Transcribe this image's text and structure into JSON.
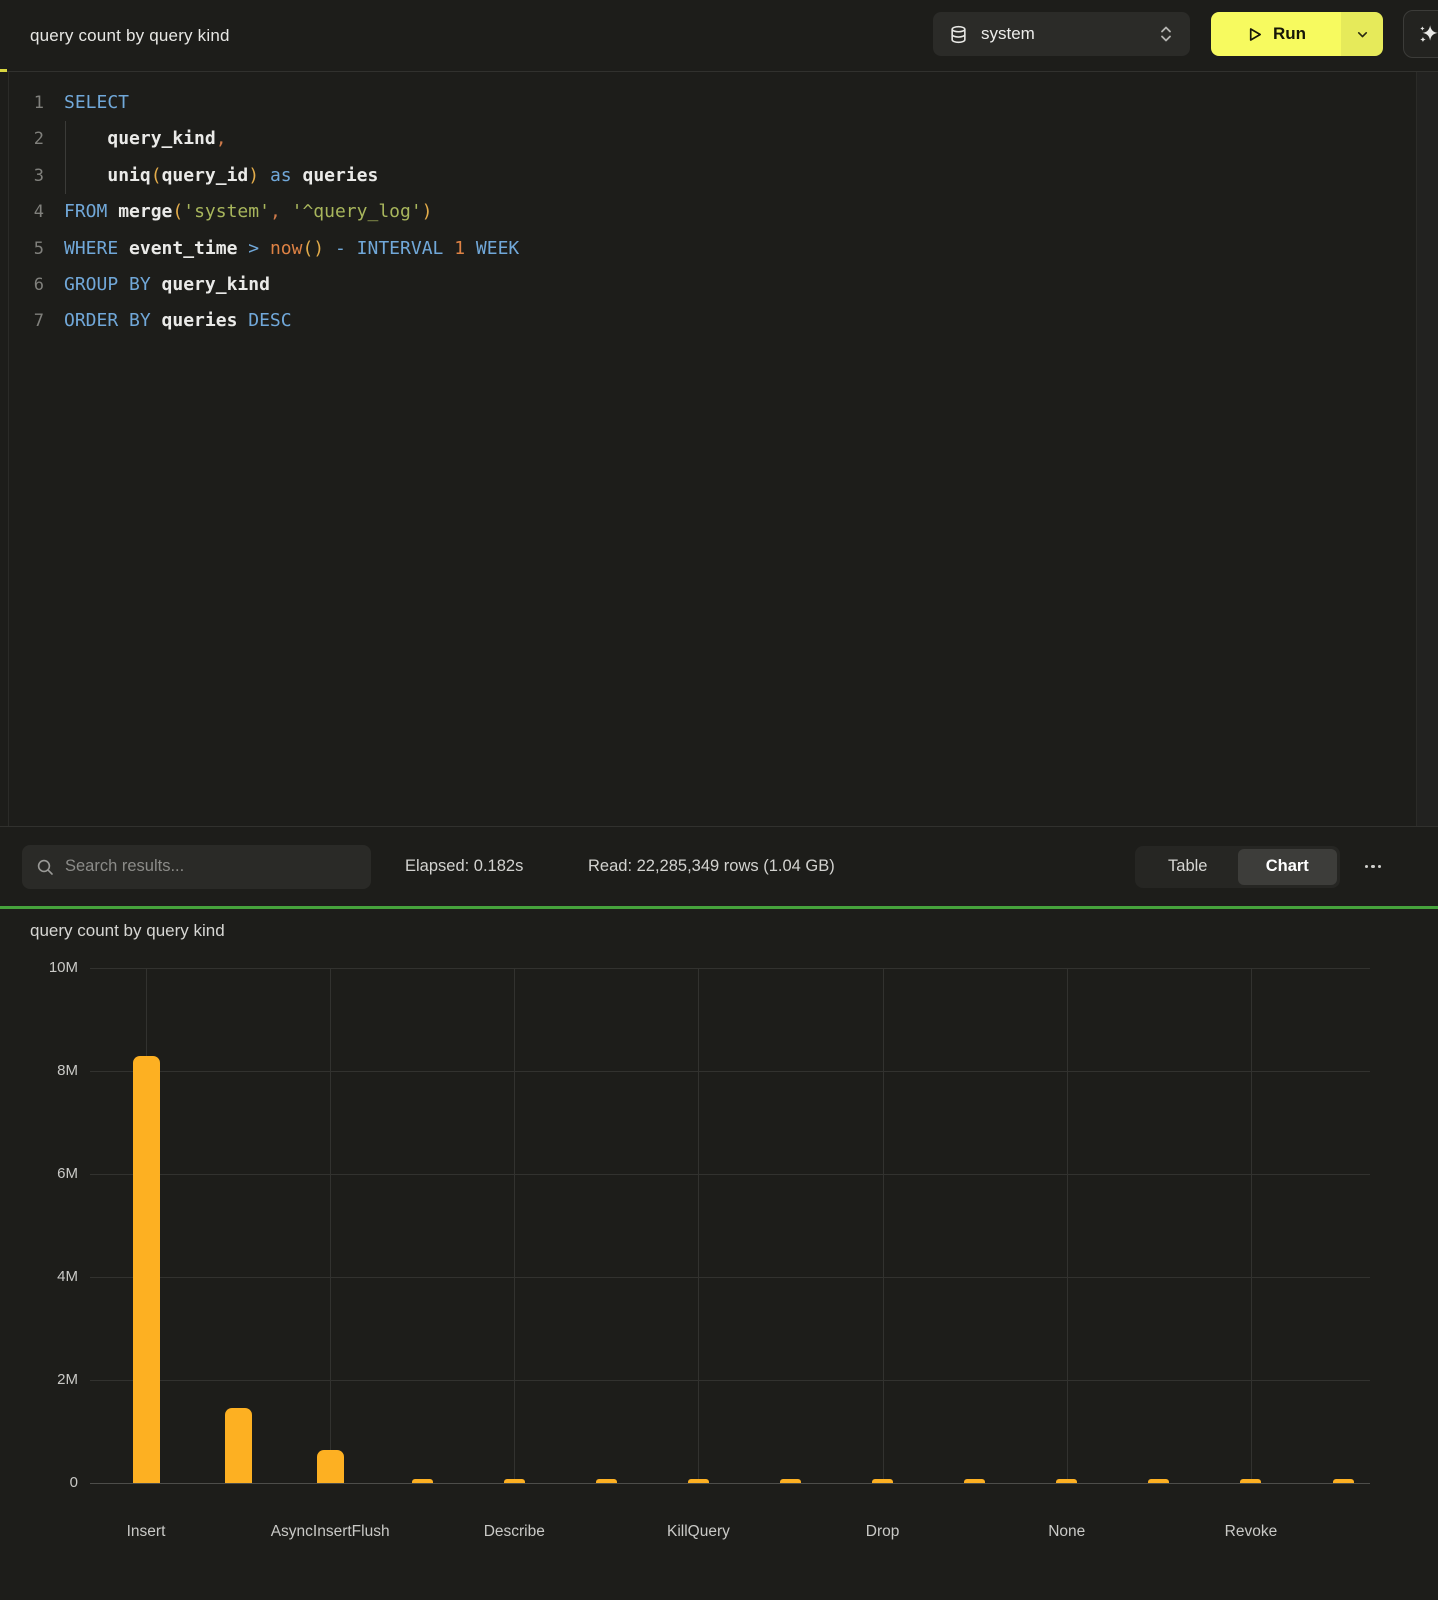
{
  "topbar": {
    "title": "query count by query kind",
    "database": "system",
    "run_label": "Run"
  },
  "editor": {
    "lines": [
      {
        "n": "1",
        "tokens": [
          [
            "kw",
            "SELECT"
          ]
        ]
      },
      {
        "n": "2",
        "tokens": [
          [
            "ws",
            "    "
          ],
          [
            "id",
            "query_kind"
          ],
          [
            "pn",
            ","
          ]
        ]
      },
      {
        "n": "3",
        "tokens": [
          [
            "ws",
            "    "
          ],
          [
            "fn",
            "uniq"
          ],
          [
            "pa",
            "("
          ],
          [
            "id",
            "query_id"
          ],
          [
            "pa",
            ")"
          ],
          [
            "ws",
            " "
          ],
          [
            "kw",
            "as"
          ],
          [
            "ws",
            " "
          ],
          [
            "id",
            "queries"
          ]
        ]
      },
      {
        "n": "4",
        "tokens": [
          [
            "kw",
            "FROM"
          ],
          [
            "ws",
            " "
          ],
          [
            "fn",
            "merge"
          ],
          [
            "pa",
            "("
          ],
          [
            "st",
            "'system'"
          ],
          [
            "pn",
            ","
          ],
          [
            "ws",
            " "
          ],
          [
            "st",
            "'^query_log'"
          ],
          [
            "pa",
            ")"
          ]
        ]
      },
      {
        "n": "5",
        "tokens": [
          [
            "kw",
            "WHERE"
          ],
          [
            "ws",
            " "
          ],
          [
            "id",
            "event_time"
          ],
          [
            "ws",
            " "
          ],
          [
            "op",
            ">"
          ],
          [
            "ws",
            " "
          ],
          [
            "nu",
            "now"
          ],
          [
            "pa",
            "()"
          ],
          [
            "ws",
            " "
          ],
          [
            "op",
            "-"
          ],
          [
            "ws",
            " "
          ],
          [
            "kw",
            "INTERVAL"
          ],
          [
            "ws",
            " "
          ],
          [
            "nu",
            "1"
          ],
          [
            "ws",
            " "
          ],
          [
            "kw",
            "WEEK"
          ]
        ]
      },
      {
        "n": "6",
        "tokens": [
          [
            "kw",
            "GROUP BY"
          ],
          [
            "ws",
            " "
          ],
          [
            "id",
            "query_kind"
          ]
        ]
      },
      {
        "n": "7",
        "tokens": [
          [
            "kw",
            "ORDER BY"
          ],
          [
            "ws",
            " "
          ],
          [
            "id",
            "queries"
          ],
          [
            "ws",
            " "
          ],
          [
            "kw",
            "DESC"
          ]
        ]
      }
    ]
  },
  "results_bar": {
    "search_placeholder": "Search results...",
    "elapsed": "Elapsed: 0.182s",
    "read": "Read: 22,285,349 rows (1.04 GB)",
    "view_options": [
      "Table",
      "Chart"
    ],
    "selected_view": "Chart"
  },
  "chart_data": {
    "type": "bar",
    "title": "query count by query kind",
    "categories": [
      "Insert",
      "",
      "AsyncInsertFlush",
      "",
      "Describe",
      "",
      "KillQuery",
      "",
      "Drop",
      "",
      "None",
      "",
      "Revoke",
      ""
    ],
    "values": [
      8300000,
      1450000,
      640000,
      80000,
      80000,
      70000,
      80000,
      70000,
      80000,
      70000,
      80000,
      70000,
      80000,
      60000
    ],
    "yticks": [
      "10M",
      "8M",
      "6M",
      "4M",
      "2M",
      "0"
    ],
    "ylim": [
      0,
      10000000
    ],
    "xlabel": "",
    "ylabel": "",
    "grid": true,
    "legend": "none",
    "bar_color": "#fdb022"
  },
  "colors": {
    "accent_yellow": "#f7fa5f",
    "divider_green": "#46a33c",
    "bar": "#fdb022"
  }
}
